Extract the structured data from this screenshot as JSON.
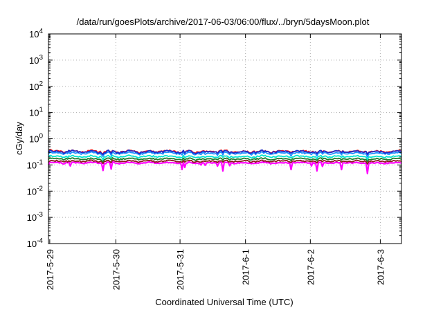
{
  "chart_data": {
    "type": "line",
    "title": "/data/run/goesPlots/archive/2017-06-03/06:00/flux/../bryn/5daysMoon.plot",
    "xlabel": "Coordinated Universal Time (UTC)",
    "ylabel": "cGy/day",
    "yscale": "log",
    "ylim": [
      0.0001,
      10000
    ],
    "xlim": [
      0,
      5.5
    ],
    "grid": true,
    "x_tick_labels": [
      "2017-5-29",
      "2017-5-30",
      "2017-5-31",
      "2017-6-1",
      "2017-6-2",
      "2017-6-3"
    ],
    "y_tick_labels": [
      {
        "base": "10",
        "exp": "4"
      },
      {
        "base": "10",
        "exp": "3"
      },
      {
        "base": "10",
        "exp": "2"
      },
      {
        "base": "10",
        "exp": "1"
      },
      {
        "base": "10",
        "exp": "0"
      },
      {
        "base": "10",
        "exp": "-1"
      },
      {
        "base": "10",
        "exp": "-2"
      },
      {
        "base": "10",
        "exp": "-3"
      },
      {
        "base": "10",
        "exp": "-4"
      }
    ],
    "series": [
      {
        "color": "#ff00ff",
        "level": 0.12,
        "dips": 0.5
      },
      {
        "color": "#8b1a1a",
        "level": 0.14,
        "dips": 0.15
      },
      {
        "color": "#1e7f2e",
        "level": 0.17,
        "dips": 0.15
      },
      {
        "color": "#00e5d0",
        "level": 0.21,
        "dips": 0.15
      },
      {
        "color": "#1e90ff",
        "level": 0.28,
        "dips": 0.2
      },
      {
        "color": "#ff1f1f",
        "level": 0.33,
        "dips": 0.15
      },
      {
        "color": "#1a2ccc",
        "level": 0.32,
        "dips": 0.15
      }
    ]
  }
}
